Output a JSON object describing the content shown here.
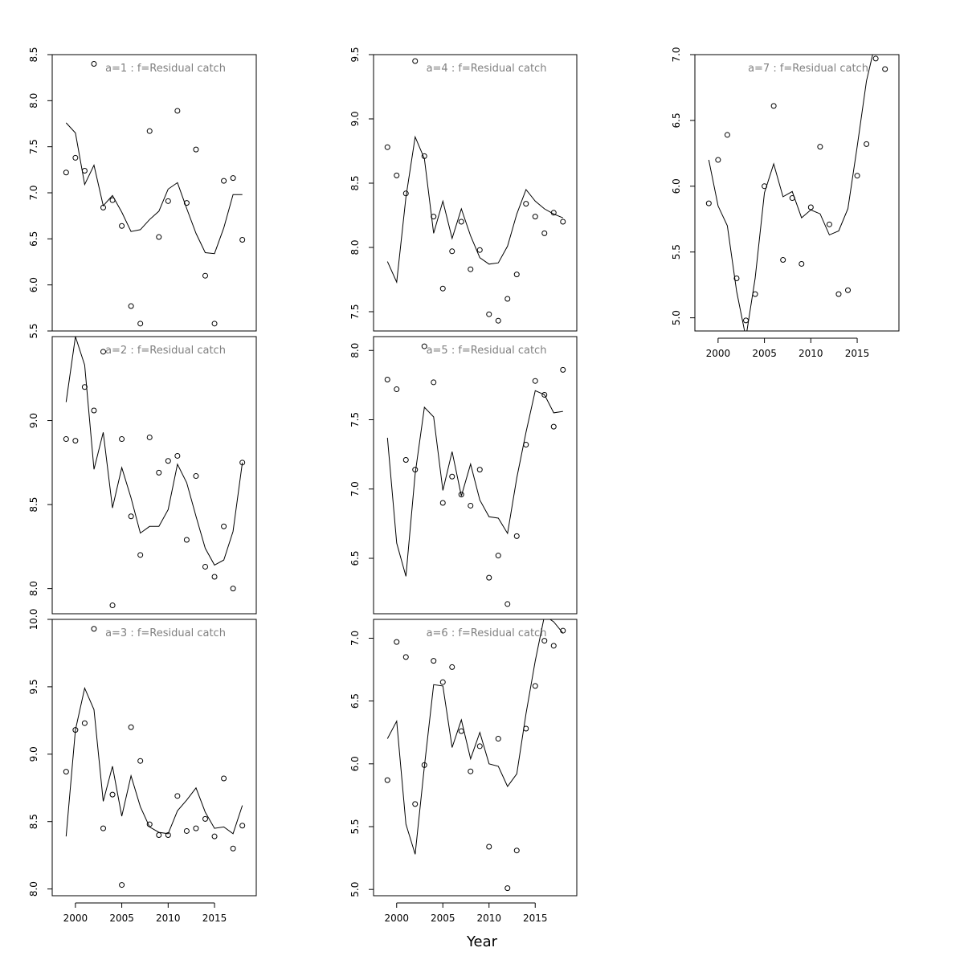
{
  "chart_data": [
    {
      "type": "scatter",
      "title": "a=1  :  f=Residual catch",
      "ylim": [
        5.5,
        8.5
      ],
      "yticks": [
        5.5,
        6.0,
        6.5,
        7.0,
        7.5,
        8.0,
        8.5
      ],
      "xlim": [
        1997.5,
        2019.5
      ],
      "show_xticks": false,
      "x": [
        1999,
        2000,
        2001,
        2002,
        2003,
        2004,
        2005,
        2006,
        2007,
        2008,
        2009,
        2010,
        2011,
        2012,
        2013,
        2014,
        2015,
        2016,
        2017,
        2018
      ],
      "observed": [
        7.22,
        7.38,
        7.24,
        8.4,
        6.84,
        6.92,
        6.64,
        5.77,
        5.58,
        7.67,
        6.52,
        6.91,
        7.89,
        6.89,
        7.47,
        6.1,
        5.58,
        7.13,
        7.16,
        6.49
      ],
      "fitted": [
        7.76,
        7.65,
        7.09,
        7.3,
        6.86,
        6.97,
        6.79,
        6.58,
        6.6,
        6.71,
        6.8,
        7.04,
        7.11,
        6.83,
        6.56,
        6.35,
        6.34,
        6.62,
        6.98,
        6.98
      ]
    },
    {
      "type": "scatter",
      "title": "a=2  :  f=Residual catch",
      "ylim": [
        7.85,
        9.5
      ],
      "yticks": [
        8.0,
        8.5,
        9.0
      ],
      "xlim": [
        1997.5,
        2019.5
      ],
      "show_xticks": false,
      "x": [
        1999,
        2000,
        2001,
        2002,
        2003,
        2004,
        2005,
        2006,
        2007,
        2008,
        2009,
        2010,
        2011,
        2012,
        2013,
        2014,
        2015,
        2016,
        2017,
        2018
      ],
      "observed": [
        8.89,
        8.88,
        9.2,
        9.06,
        9.41,
        7.9,
        8.89,
        8.43,
        8.2,
        8.9,
        8.69,
        8.76,
        8.79,
        8.29,
        8.67,
        8.13,
        8.07,
        8.37,
        8.0,
        8.75
      ],
      "fitted": [
        9.11,
        9.5,
        9.33,
        8.71,
        8.93,
        8.48,
        8.72,
        8.54,
        8.33,
        8.37,
        8.37,
        8.47,
        8.74,
        8.63,
        8.43,
        8.24,
        8.14,
        8.17,
        8.34,
        8.75
      ]
    },
    {
      "type": "scatter",
      "title": "a=3  :  f=Residual catch",
      "ylim": [
        7.95,
        10.0
      ],
      "yticks": [
        8.0,
        8.5,
        9.0,
        9.5,
        10.0
      ],
      "xlim": [
        1997.5,
        2019.5
      ],
      "show_xticks": true,
      "xticks": [
        2000,
        2005,
        2010,
        2015
      ],
      "x": [
        1999,
        2000,
        2001,
        2002,
        2003,
        2004,
        2005,
        2006,
        2007,
        2008,
        2009,
        2010,
        2011,
        2012,
        2013,
        2014,
        2015,
        2016,
        2017,
        2018
      ],
      "observed": [
        8.87,
        9.18,
        9.23,
        9.93,
        8.45,
        8.7,
        8.03,
        9.2,
        8.95,
        8.48,
        8.4,
        8.4,
        8.69,
        8.43,
        8.45,
        8.52,
        8.39,
        8.82,
        8.3,
        8.47
      ],
      "fitted": [
        8.39,
        9.18,
        9.49,
        9.33,
        8.65,
        8.91,
        8.54,
        8.84,
        8.61,
        8.46,
        8.42,
        8.41,
        8.58,
        8.66,
        8.75,
        8.57,
        8.45,
        8.46,
        8.41,
        8.62
      ]
    },
    {
      "type": "scatter",
      "title": "a=4  :  f=Residual catch",
      "ylim": [
        7.35,
        9.5
      ],
      "yticks": [
        7.5,
        8.0,
        8.5,
        9.0,
        9.5
      ],
      "xlim": [
        1997.5,
        2019.5
      ],
      "show_xticks": false,
      "x": [
        1999,
        2000,
        2001,
        2002,
        2003,
        2004,
        2005,
        2006,
        2007,
        2008,
        2009,
        2010,
        2011,
        2012,
        2013,
        2014,
        2015,
        2016,
        2017,
        2018
      ],
      "observed": [
        8.78,
        8.56,
        8.42,
        9.45,
        8.71,
        8.24,
        7.68,
        7.97,
        8.2,
        7.83,
        7.98,
        7.48,
        7.43,
        7.6,
        7.79,
        8.34,
        8.24,
        8.11,
        8.27,
        8.2
      ],
      "fitted": [
        7.89,
        7.73,
        8.39,
        8.86,
        8.69,
        8.11,
        8.36,
        8.07,
        8.3,
        8.09,
        7.92,
        7.87,
        7.88,
        8.01,
        8.26,
        8.45,
        8.36,
        8.3,
        8.26,
        8.23
      ]
    },
    {
      "type": "scatter",
      "title": "a=5  :  f=Residual catch",
      "ylim": [
        6.1,
        8.1
      ],
      "yticks": [
        6.5,
        7.0,
        7.5,
        8.0
      ],
      "xlim": [
        1997.5,
        2019.5
      ],
      "show_xticks": false,
      "x": [
        1999,
        2000,
        2001,
        2002,
        2003,
        2004,
        2005,
        2006,
        2007,
        2008,
        2009,
        2010,
        2011,
        2012,
        2013,
        2014,
        2015,
        2016,
        2017,
        2018
      ],
      "observed": [
        7.79,
        7.72,
        7.21,
        7.14,
        8.03,
        7.77,
        6.9,
        7.09,
        6.96,
        6.88,
        7.14,
        6.36,
        6.52,
        6.17,
        6.66,
        7.32,
        7.78,
        7.68,
        7.45,
        7.86
      ],
      "fitted": [
        7.37,
        6.61,
        6.37,
        7.11,
        7.59,
        7.52,
        6.99,
        7.27,
        6.95,
        7.18,
        6.92,
        6.8,
        6.79,
        6.68,
        7.08,
        7.41,
        7.71,
        7.68,
        7.55,
        7.56
      ]
    },
    {
      "type": "scatter",
      "title": "a=6  :  f=Residual catch",
      "ylim": [
        4.95,
        7.15
      ],
      "yticks": [
        5.0,
        5.5,
        6.0,
        6.5,
        7.0
      ],
      "xlim": [
        1997.5,
        2019.5
      ],
      "show_xticks": true,
      "xticks": [
        2000,
        2005,
        2010,
        2015
      ],
      "x": [
        1999,
        2000,
        2001,
        2002,
        2003,
        2004,
        2005,
        2006,
        2007,
        2008,
        2009,
        2010,
        2011,
        2012,
        2013,
        2014,
        2015,
        2016,
        2017,
        2018
      ],
      "observed": [
        5.87,
        6.97,
        6.85,
        5.68,
        5.99,
        6.82,
        6.65,
        6.77,
        6.26,
        5.94,
        6.14,
        5.34,
        6.2,
        5.01,
        5.31,
        6.28,
        6.62,
        6.98,
        6.94,
        7.06
      ],
      "fitted": [
        6.2,
        6.34,
        5.52,
        5.28,
        5.98,
        6.63,
        6.62,
        6.13,
        6.35,
        6.04,
        6.25,
        6.0,
        5.98,
        5.82,
        5.92,
        6.4,
        6.82,
        7.18,
        7.13,
        7.04
      ]
    },
    {
      "type": "scatter",
      "title": "a=7  :  f=Residual catch",
      "ylim": [
        4.9,
        7.0
      ],
      "yticks": [
        5.0,
        5.5,
        6.0,
        6.5,
        7.0
      ],
      "xlim": [
        1997.5,
        2019.5
      ],
      "show_xticks": true,
      "xticks": [
        2000,
        2005,
        2010,
        2015
      ],
      "x": [
        1999,
        2000,
        2001,
        2002,
        2003,
        2004,
        2005,
        2006,
        2007,
        2008,
        2009,
        2010,
        2011,
        2012,
        2013,
        2014,
        2015,
        2016,
        2017,
        2018
      ],
      "observed": [
        5.87,
        6.2,
        6.39,
        5.3,
        4.98,
        5.18,
        6.0,
        6.61,
        5.44,
        5.91,
        5.41,
        5.84,
        6.3,
        5.71,
        5.18,
        5.21,
        6.08,
        6.32,
        6.97,
        6.89
      ],
      "fitted": [
        6.2,
        5.85,
        5.7,
        5.2,
        4.85,
        5.3,
        5.95,
        6.17,
        5.92,
        5.96,
        5.76,
        5.82,
        5.79,
        5.63,
        5.66,
        5.83,
        6.3,
        6.8,
        7.1,
        7.05
      ]
    }
  ],
  "shared_xlabel": "Year"
}
